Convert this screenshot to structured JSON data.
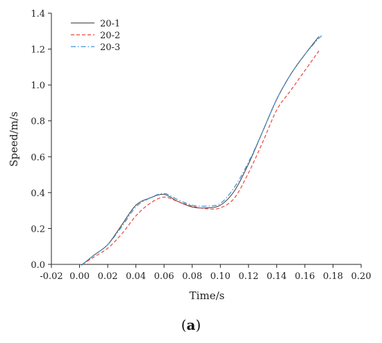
{
  "caption": {
    "open": "(",
    "letter": "a",
    "close": ")"
  },
  "chart_data": {
    "type": "line",
    "xlabel": "Time/s",
    "ylabel": "Speed/m/s",
    "xlim": [
      -0.02,
      0.2
    ],
    "ylim": [
      0.0,
      1.4
    ],
    "x_ticks": [
      -0.02,
      0.0,
      0.02,
      0.04,
      0.06,
      0.08,
      0.1,
      0.12,
      0.14,
      0.16,
      0.18,
      0.2
    ],
    "x_tick_labels": [
      "-0.02",
      "0.00",
      "0.02",
      "0.04",
      "0.06",
      "0.08",
      "0.10",
      "0.12",
      "0.14",
      "0.16",
      "0.18",
      "0.20"
    ],
    "y_ticks": [
      0.0,
      0.2,
      0.4,
      0.6,
      0.8,
      1.0,
      1.2,
      1.4
    ],
    "y_tick_labels": [
      "0.0",
      "0.2",
      "0.4",
      "0.6",
      "0.8",
      "1.0",
      "1.2",
      "1.4"
    ],
    "grid": false,
    "legend_position": "top-left",
    "series": [
      {
        "name": "20-1",
        "color": "#555555",
        "dash": "solid",
        "x": [
          -0.02,
          0.0,
          0.002,
          0.01,
          0.02,
          0.03,
          0.04,
          0.05,
          0.06,
          0.07,
          0.08,
          0.09,
          0.1,
          0.11,
          0.12,
          0.13,
          0.14,
          0.15,
          0.16,
          0.17
        ],
        "y": [
          0.0,
          0.0,
          0.0,
          0.05,
          0.11,
          0.22,
          0.33,
          0.37,
          0.39,
          0.35,
          0.32,
          0.315,
          0.33,
          0.41,
          0.56,
          0.74,
          0.92,
          1.06,
          1.17,
          1.27
        ]
      },
      {
        "name": "20-2",
        "color": "#e8453c",
        "dash": "dashed",
        "x": [
          0.002,
          0.01,
          0.02,
          0.03,
          0.04,
          0.05,
          0.06,
          0.07,
          0.08,
          0.09,
          0.1,
          0.11,
          0.12,
          0.13,
          0.14,
          0.15,
          0.16,
          0.17
        ],
        "y": [
          0.0,
          0.04,
          0.09,
          0.17,
          0.27,
          0.34,
          0.375,
          0.35,
          0.325,
          0.31,
          0.315,
          0.37,
          0.51,
          0.68,
          0.86,
          0.97,
          1.08,
          1.19
        ]
      },
      {
        "name": "20-3",
        "color": "#3a8fd9",
        "dash": "dashdot",
        "x": [
          0.002,
          0.01,
          0.02,
          0.03,
          0.04,
          0.05,
          0.06,
          0.07,
          0.08,
          0.09,
          0.1,
          0.11,
          0.12,
          0.13,
          0.14,
          0.15,
          0.16,
          0.17,
          0.173
        ],
        "y": [
          0.0,
          0.05,
          0.11,
          0.21,
          0.32,
          0.37,
          0.395,
          0.36,
          0.33,
          0.325,
          0.34,
          0.43,
          0.57,
          0.74,
          0.92,
          1.06,
          1.17,
          1.26,
          1.28
        ]
      }
    ]
  }
}
